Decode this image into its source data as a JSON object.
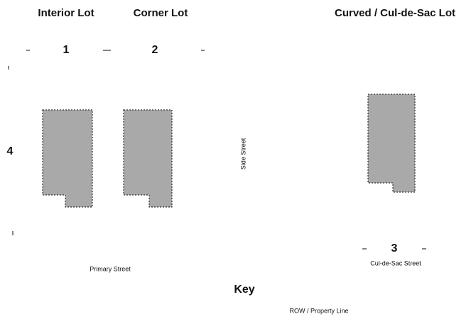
{
  "titles": {
    "interior": "Interior Lot",
    "corner": "Corner Lot",
    "curved": "Curved / Cul-de-Sac Lot"
  },
  "labels": {
    "one": "1",
    "two": "2",
    "three": "3",
    "four": "4"
  },
  "streets": {
    "side": "Side Street",
    "primary": "Primary Street",
    "culdesac": "Cul-de-Sac Street"
  },
  "key": {
    "title": "Key",
    "item": "ROW / Property Line"
  }
}
